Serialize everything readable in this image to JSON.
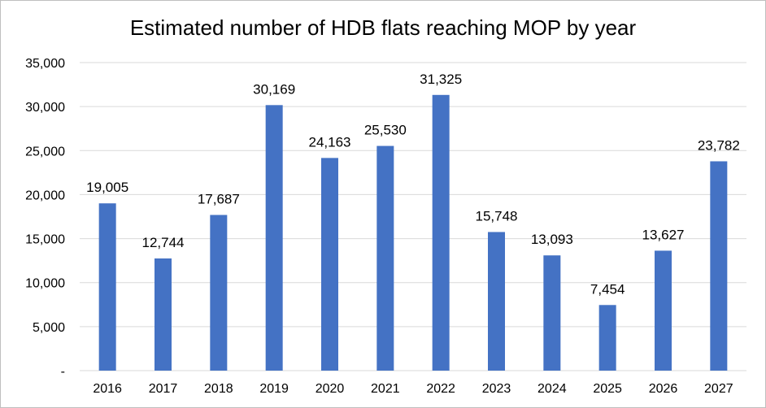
{
  "chart_data": {
    "type": "bar",
    "title": "Estimated number of HDB flats reaching MOP by year",
    "xlabel": "",
    "ylabel": "",
    "categories": [
      "2016",
      "2017",
      "2018",
      "2019",
      "2020",
      "2021",
      "2022",
      "2023",
      "2024",
      "2025",
      "2026",
      "2027"
    ],
    "values": [
      19005,
      12744,
      17687,
      30169,
      24163,
      25530,
      31325,
      15748,
      13093,
      7454,
      13627,
      23782
    ],
    "data_labels": [
      "19,005",
      "12,744",
      "17,687",
      "30,169",
      "24,163",
      "25,530",
      "31,325",
      "15,748",
      "13,093",
      "7,454",
      "13,627",
      "23,782"
    ],
    "ylim": [
      0,
      35000
    ],
    "yticks": [
      0,
      5000,
      10000,
      15000,
      20000,
      25000,
      30000,
      35000
    ],
    "ytick_labels": [
      "-",
      "5,000",
      "10,000",
      "15,000",
      "20,000",
      "25,000",
      "30,000",
      "35,000"
    ],
    "grid": true,
    "legend": "none",
    "bar_color": "#4472C4",
    "grid_color": "#d9d9d9"
  }
}
